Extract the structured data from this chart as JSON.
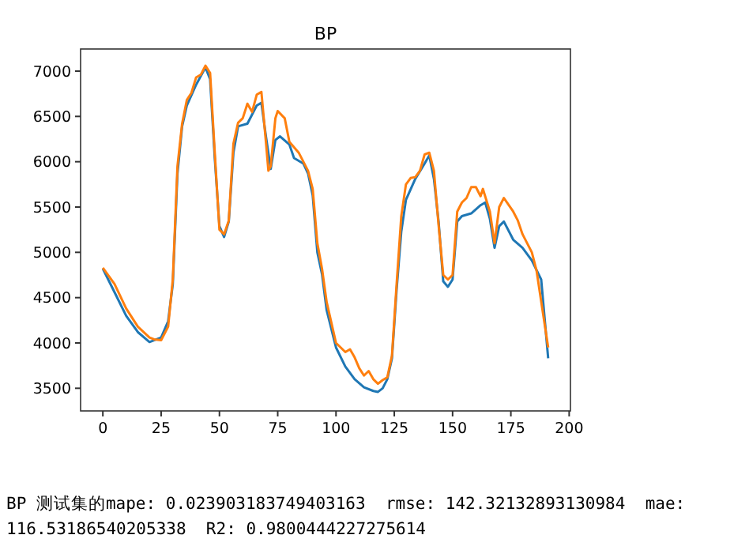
{
  "chart_data": {
    "type": "line",
    "title": "BP",
    "xlim": [
      -9.55,
      200.55
    ],
    "ylim": [
      3250,
      7244
    ],
    "xticks": [
      0,
      25,
      50,
      75,
      100,
      125,
      150,
      175,
      200
    ],
    "yticks": [
      3500,
      4000,
      4500,
      5000,
      5500,
      6000,
      6500,
      7000
    ],
    "grid": false,
    "series": [
      {
        "color": "#1f77b4",
        "x": [
          0,
          5,
          10,
          15,
          20,
          23,
          25,
          28,
          30,
          32,
          34,
          36,
          40,
          44,
          46,
          48,
          50,
          52,
          54,
          56,
          58,
          62,
          66,
          68,
          70,
          72,
          74,
          76,
          80,
          82,
          86,
          88,
          90,
          92,
          94,
          96,
          100,
          104,
          108,
          112,
          116,
          118,
          120,
          122,
          124,
          126,
          128,
          130,
          134,
          138,
          140,
          142,
          144,
          146,
          148,
          150,
          152,
          154,
          158,
          162,
          164,
          166,
          168,
          170,
          172,
          176,
          180,
          184,
          188,
          191
        ],
        "values": [
          4820,
          4560,
          4300,
          4120,
          4010,
          4040,
          4060,
          4240,
          4650,
          5870,
          6390,
          6620,
          6850,
          7040,
          6910,
          6040,
          5290,
          5170,
          5340,
          6100,
          6390,
          6420,
          6620,
          6650,
          6270,
          5920,
          6240,
          6280,
          6190,
          6040,
          5980,
          5870,
          5630,
          5000,
          4760,
          4360,
          3950,
          3740,
          3600,
          3510,
          3470,
          3460,
          3500,
          3600,
          3830,
          4590,
          5230,
          5580,
          5810,
          5980,
          6070,
          5810,
          5340,
          4680,
          4620,
          4700,
          5340,
          5400,
          5430,
          5520,
          5550,
          5370,
          5050,
          5290,
          5340,
          5140,
          5050,
          4910,
          4700,
          3830
        ]
      },
      {
        "color": "#ff7f0e",
        "x": [
          0,
          5,
          10,
          15,
          20,
          22,
          25,
          28,
          30,
          32,
          34,
          36,
          38,
          40,
          42,
          44,
          46,
          48,
          50,
          52,
          54,
          56,
          58,
          60,
          62,
          64,
          66,
          68,
          70,
          71,
          72,
          74,
          75,
          78,
          80,
          84,
          88,
          90,
          92,
          94,
          96,
          100,
          104,
          106,
          108,
          110,
          112,
          114,
          116,
          118,
          120,
          122,
          124,
          126,
          128,
          130,
          132,
          134,
          136,
          138,
          140,
          142,
          144,
          146,
          148,
          150,
          152,
          154,
          156,
          158,
          160,
          162,
          163,
          166,
          168,
          170,
          172,
          176,
          178,
          180,
          184,
          186,
          191
        ],
        "values": [
          4830,
          4650,
          4380,
          4180,
          4060,
          4040,
          4030,
          4180,
          4700,
          5950,
          6420,
          6680,
          6760,
          6930,
          6960,
          7060,
          6980,
          6100,
          5250,
          5200,
          5350,
          6200,
          6430,
          6480,
          6640,
          6550,
          6740,
          6770,
          6200,
          5900,
          5950,
          6480,
          6560,
          6480,
          6220,
          6100,
          5900,
          5700,
          5100,
          4820,
          4450,
          4000,
          3900,
          3930,
          3840,
          3720,
          3640,
          3690,
          3600,
          3550,
          3590,
          3620,
          3860,
          4650,
          5400,
          5750,
          5820,
          5830,
          5900,
          6080,
          6100,
          5900,
          5300,
          4750,
          4700,
          4750,
          5450,
          5550,
          5600,
          5720,
          5720,
          5620,
          5700,
          5450,
          5100,
          5500,
          5600,
          5450,
          5350,
          5200,
          5000,
          4800,
          3950
        ]
      }
    ],
    "annotations": [
      "BP 测试集的mape: 0.023903183749403163  rmse: 142.32132893130984  mae:",
      "116.53186540205338  R2: 0.9800444227275614"
    ]
  }
}
